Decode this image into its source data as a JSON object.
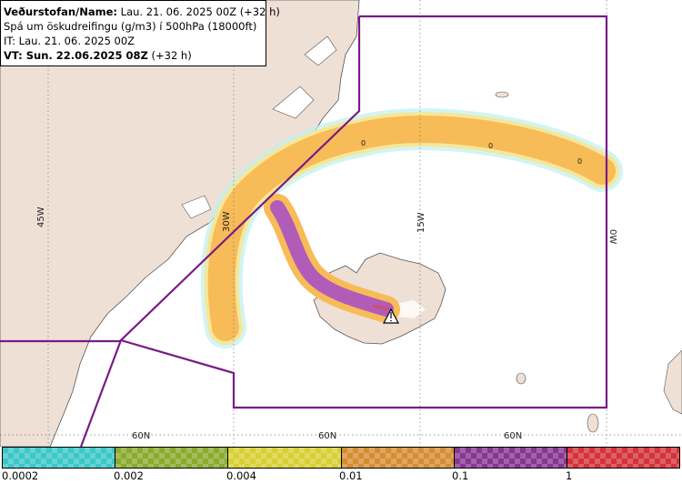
{
  "info": {
    "line1_bold": "Veðurstofan/Name:",
    "line1_rest": "Lau. 21. 06. 2025 00Z (+32 h)",
    "line2": "Spá um öskudreifingu (g/m3) í 500hPa (18000ft)",
    "line3": "IT: Lau. 21. 06. 2025 00Z",
    "line4_bold": "VT: Sun. 22.06.2025 08Z",
    "line4_rest": "(+32 h)"
  },
  "map": {
    "longitude_labels": [
      "45W",
      "30W",
      "15W",
      "0W"
    ],
    "latitude_labels": [
      "60N",
      "60N",
      "60N"
    ],
    "contour_labels": [
      "0",
      "0",
      "0"
    ],
    "colors": {
      "land": "#efe0d6",
      "sea": "#ffffff",
      "plume_low": "#f7bb58",
      "plume_mid": "#b05cb8",
      "boundary": "#7a1a86",
      "volcano_marker": "#000000"
    }
  },
  "legend": {
    "swatches": [
      {
        "color": "#3cc7c8"
      },
      {
        "color": "#8aab2e"
      },
      {
        "color": "#d9cf34"
      },
      {
        "color": "#d58d33"
      },
      {
        "color": "#86378f"
      },
      {
        "color": "#d3333b"
      }
    ],
    "ticks": [
      "0.0002",
      "0.002",
      "0.004",
      "0.01",
      "0.1",
      "1"
    ]
  }
}
